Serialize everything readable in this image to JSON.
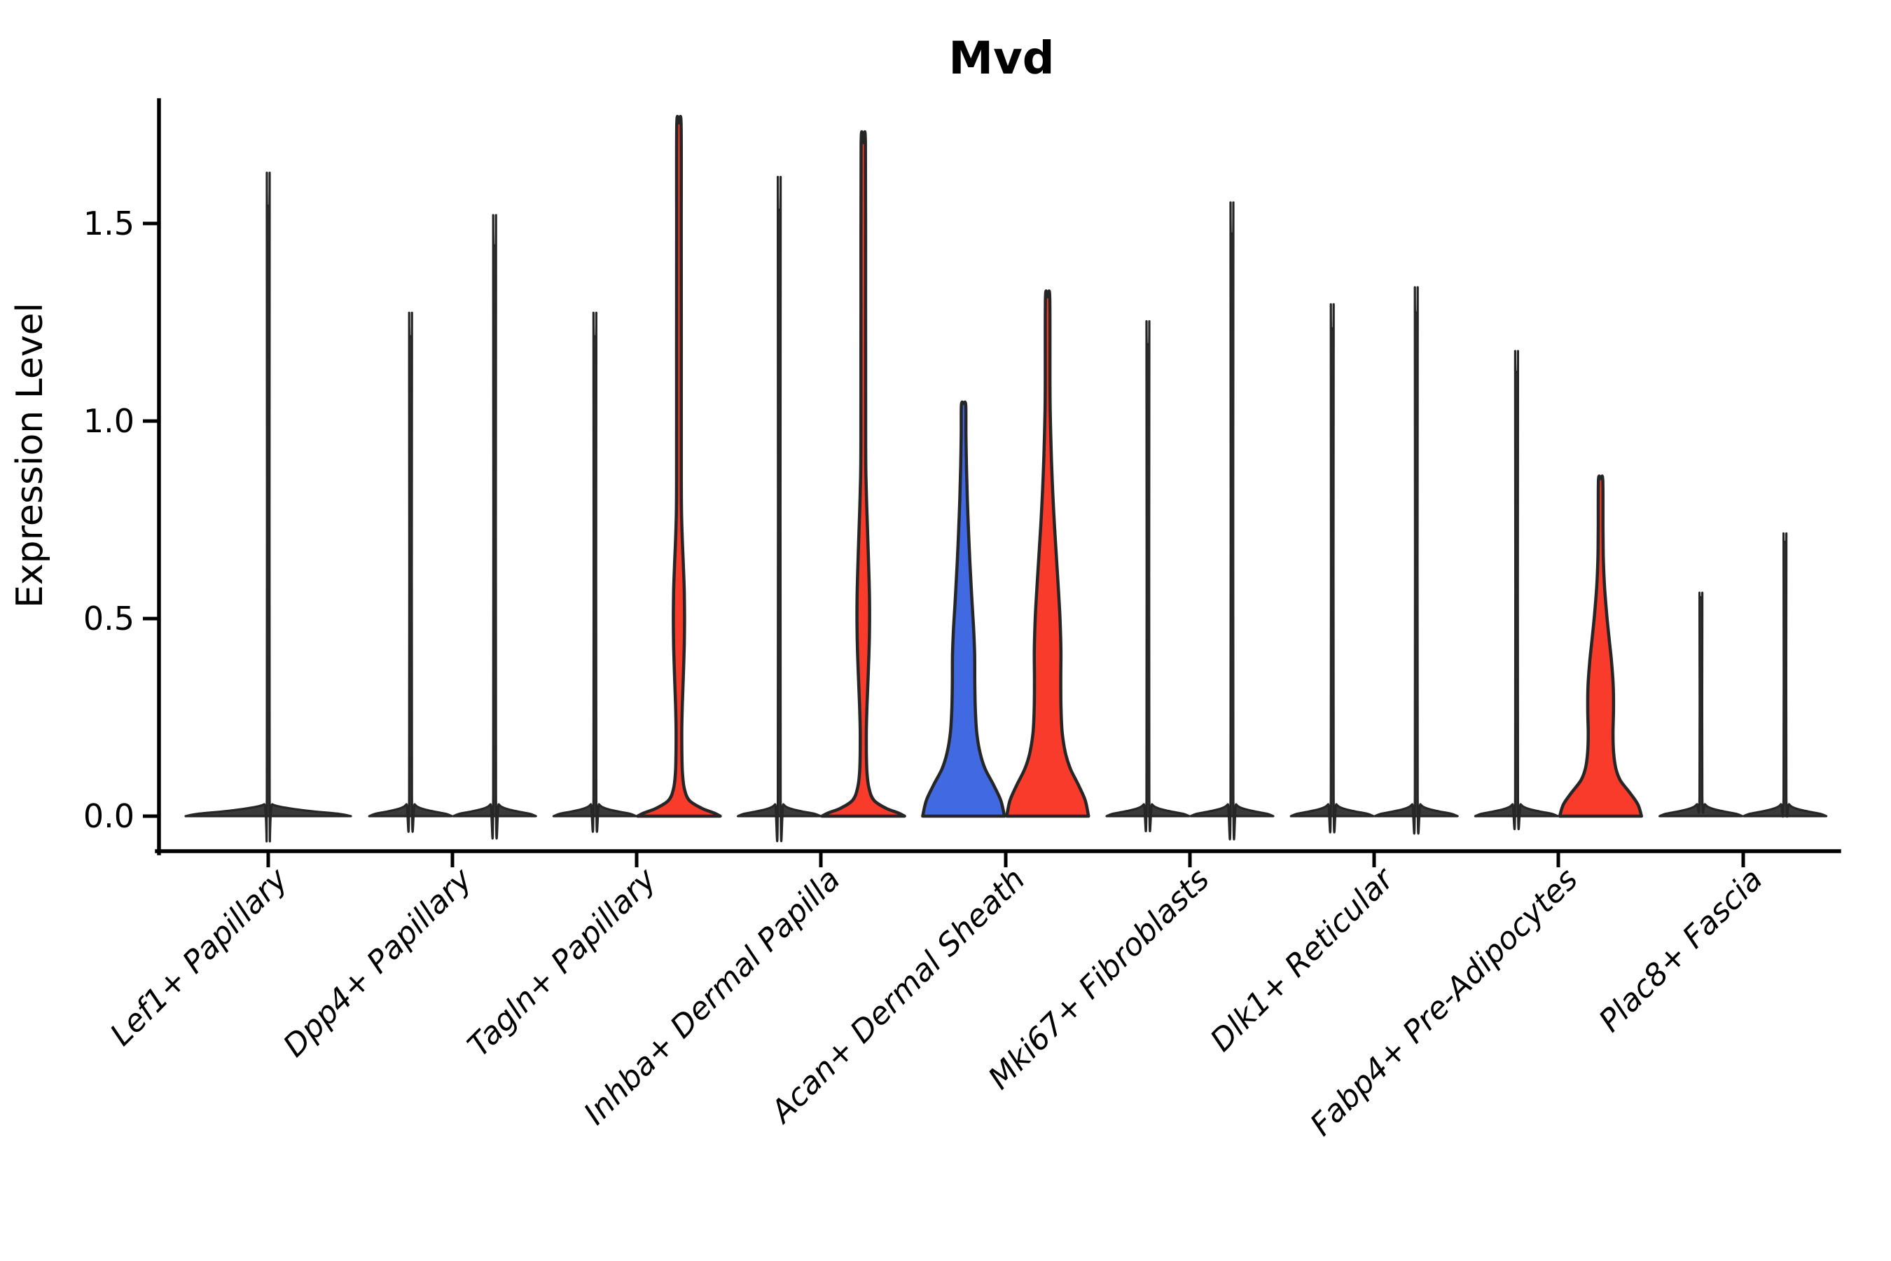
{
  "title": "Mvd",
  "axes": {
    "y_label": "Expression Level",
    "y_ticks": [
      "0.0",
      "0.5",
      "1.0",
      "1.5"
    ],
    "x_labels": [
      "Lef1+ Papillary",
      "Dpp4+ Papillary",
      "Tagln+ Papillary",
      "Inhba+ Dermal Papilla",
      "Acan+ Dermal Sheath",
      "Mki67+ Fibroblasts",
      "Dlk1+ Reticular",
      "Fabp4+ Pre-Adipocytes",
      "Plac8+ Fascia"
    ]
  },
  "chart_data": {
    "type": "violin",
    "title": "Mvd",
    "xlabel": "",
    "ylabel": "Expression Level",
    "ylim": [
      0,
      1.81
    ],
    "y_tick_values": [
      0.0,
      0.5,
      1.0,
      1.5
    ],
    "grid": false,
    "legend": false,
    "categories": [
      "Lef1+ Papillary",
      "Dpp4+ Papillary",
      "Tagln+ Papillary",
      "Inhba+ Dermal Papilla",
      "Acan+ Dermal Sheath",
      "Mki67+ Fibroblasts",
      "Dlk1+ Reticular",
      "Fabp4+ Pre-Adipocytes",
      "Plac8+ Fascia"
    ],
    "colors": {
      "black": "#3a3a3a",
      "red": "#f93b2b",
      "blue": "#4169e1",
      "outline": "#262626"
    },
    "violins": [
      {
        "category": "Lef1+ Papillary",
        "side": "full",
        "color": "black",
        "max_expression": 1.54,
        "profile": [
          [
            0,
            1.0
          ],
          [
            0.006,
            0.85
          ],
          [
            0.012,
            0.55
          ],
          [
            0.02,
            0.25
          ],
          [
            0.03,
            0.05
          ],
          [
            0.05,
            0.017
          ],
          [
            1.51,
            0.017
          ],
          [
            1.54,
            0.015
          ]
        ]
      },
      {
        "category": "Dpp4+ Papillary",
        "side": "left",
        "color": "black",
        "max_expression": 1.21,
        "profile": [
          [
            0,
            1.0
          ],
          [
            0.006,
            0.85
          ],
          [
            0.012,
            0.55
          ],
          [
            0.02,
            0.25
          ],
          [
            0.03,
            0.1
          ],
          [
            0.05,
            0.034
          ],
          [
            1.18,
            0.034
          ],
          [
            1.21,
            0.03
          ]
        ]
      },
      {
        "category": "Dpp4+ Papillary",
        "side": "right",
        "color": "black",
        "max_expression": 1.44,
        "profile": [
          [
            0,
            1.0
          ],
          [
            0.006,
            0.85
          ],
          [
            0.012,
            0.55
          ],
          [
            0.02,
            0.25
          ],
          [
            0.03,
            0.1
          ],
          [
            0.05,
            0.034
          ],
          [
            1.41,
            0.034
          ],
          [
            1.44,
            0.03
          ]
        ]
      },
      {
        "category": "Tagln+ Papillary",
        "side": "left",
        "color": "black",
        "max_expression": 1.21,
        "profile": [
          [
            0,
            1.0
          ],
          [
            0.006,
            0.85
          ],
          [
            0.012,
            0.55
          ],
          [
            0.02,
            0.25
          ],
          [
            0.03,
            0.1
          ],
          [
            0.05,
            0.034
          ],
          [
            1.18,
            0.034
          ],
          [
            1.21,
            0.03
          ]
        ]
      },
      {
        "category": "Tagln+ Papillary",
        "side": "right",
        "color": "red",
        "max_expression": 1.75,
        "profile": [
          [
            0,
            1.0
          ],
          [
            0.008,
            0.85
          ],
          [
            0.02,
            0.55
          ],
          [
            0.04,
            0.25
          ],
          [
            0.07,
            0.13
          ],
          [
            0.11,
            0.085
          ],
          [
            0.16,
            0.072
          ],
          [
            0.22,
            0.07
          ],
          [
            0.28,
            0.082
          ],
          [
            0.35,
            0.105
          ],
          [
            0.43,
            0.128
          ],
          [
            0.5,
            0.135
          ],
          [
            0.57,
            0.128
          ],
          [
            0.64,
            0.105
          ],
          [
            0.7,
            0.082
          ],
          [
            0.76,
            0.065
          ],
          [
            0.85,
            0.058
          ],
          [
            1.2,
            0.057
          ],
          [
            1.5,
            0.056
          ],
          [
            1.75,
            0.052
          ]
        ]
      },
      {
        "category": "Inhba+ Dermal Papilla",
        "side": "left",
        "color": "black",
        "max_expression": 1.53,
        "profile": [
          [
            0,
            1.0
          ],
          [
            0.006,
            0.85
          ],
          [
            0.012,
            0.55
          ],
          [
            0.02,
            0.25
          ],
          [
            0.03,
            0.1
          ],
          [
            0.05,
            0.034
          ],
          [
            1.5,
            0.034
          ],
          [
            1.53,
            0.03
          ]
        ]
      },
      {
        "category": "Inhba+ Dermal Papilla",
        "side": "right",
        "color": "red",
        "max_expression": 1.7,
        "profile": [
          [
            0,
            1.0
          ],
          [
            0.008,
            0.85
          ],
          [
            0.02,
            0.55
          ],
          [
            0.04,
            0.26
          ],
          [
            0.07,
            0.14
          ],
          [
            0.11,
            0.09
          ],
          [
            0.16,
            0.075
          ],
          [
            0.22,
            0.075
          ],
          [
            0.28,
            0.09
          ],
          [
            0.36,
            0.12
          ],
          [
            0.45,
            0.148
          ],
          [
            0.53,
            0.152
          ],
          [
            0.61,
            0.138
          ],
          [
            0.7,
            0.11
          ],
          [
            0.78,
            0.085
          ],
          [
            0.86,
            0.065
          ],
          [
            0.95,
            0.058
          ],
          [
            1.3,
            0.056
          ],
          [
            1.7,
            0.052
          ]
        ]
      },
      {
        "category": "Acan+ Dermal Sheath",
        "side": "left",
        "color": "blue",
        "max_expression": 1.04,
        "profile": [
          [
            0,
            0.99
          ],
          [
            0.04,
            0.9
          ],
          [
            0.08,
            0.72
          ],
          [
            0.12,
            0.52
          ],
          [
            0.16,
            0.4
          ],
          [
            0.21,
            0.32
          ],
          [
            0.27,
            0.285
          ],
          [
            0.34,
            0.272
          ],
          [
            0.41,
            0.268
          ],
          [
            0.48,
            0.24
          ],
          [
            0.56,
            0.195
          ],
          [
            0.64,
            0.155
          ],
          [
            0.72,
            0.12
          ],
          [
            0.8,
            0.092
          ],
          [
            0.88,
            0.072
          ],
          [
            0.96,
            0.058
          ],
          [
            1.04,
            0.052
          ]
        ]
      },
      {
        "category": "Acan+ Dermal Sheath",
        "side": "right",
        "color": "red",
        "max_expression": 1.31,
        "profile": [
          [
            0,
            0.99
          ],
          [
            0.04,
            0.91
          ],
          [
            0.08,
            0.74
          ],
          [
            0.12,
            0.55
          ],
          [
            0.16,
            0.43
          ],
          [
            0.21,
            0.355
          ],
          [
            0.27,
            0.325
          ],
          [
            0.34,
            0.318
          ],
          [
            0.42,
            0.322
          ],
          [
            0.5,
            0.3
          ],
          [
            0.58,
            0.258
          ],
          [
            0.66,
            0.21
          ],
          [
            0.74,
            0.163
          ],
          [
            0.82,
            0.124
          ],
          [
            0.9,
            0.094
          ],
          [
            0.99,
            0.07
          ],
          [
            1.08,
            0.057
          ],
          [
            1.31,
            0.052
          ]
        ]
      },
      {
        "category": "Mki67+ Fibroblasts",
        "side": "left",
        "color": "black",
        "max_expression": 1.19,
        "profile": [
          [
            0,
            1.0
          ],
          [
            0.006,
            0.85
          ],
          [
            0.012,
            0.55
          ],
          [
            0.02,
            0.25
          ],
          [
            0.03,
            0.1
          ],
          [
            0.05,
            0.034
          ],
          [
            1.16,
            0.034
          ],
          [
            1.19,
            0.03
          ]
        ]
      },
      {
        "category": "Mki67+ Fibroblasts",
        "side": "right",
        "color": "black",
        "max_expression": 1.47,
        "profile": [
          [
            0,
            1.0
          ],
          [
            0.006,
            0.85
          ],
          [
            0.012,
            0.55
          ],
          [
            0.02,
            0.25
          ],
          [
            0.03,
            0.1
          ],
          [
            0.05,
            0.034
          ],
          [
            1.44,
            0.034
          ],
          [
            1.47,
            0.03
          ]
        ]
      },
      {
        "category": "Dlk1+ Reticular",
        "side": "left",
        "color": "black",
        "max_expression": 1.23,
        "profile": [
          [
            0,
            1.0
          ],
          [
            0.006,
            0.85
          ],
          [
            0.012,
            0.55
          ],
          [
            0.02,
            0.25
          ],
          [
            0.03,
            0.1
          ],
          [
            0.05,
            0.034
          ],
          [
            1.2,
            0.034
          ],
          [
            1.23,
            0.03
          ]
        ]
      },
      {
        "category": "Dlk1+ Reticular",
        "side": "right",
        "color": "black",
        "max_expression": 1.27,
        "profile": [
          [
            0,
            1.0
          ],
          [
            0.006,
            0.85
          ],
          [
            0.012,
            0.55
          ],
          [
            0.02,
            0.25
          ],
          [
            0.03,
            0.1
          ],
          [
            0.05,
            0.034
          ],
          [
            1.24,
            0.034
          ],
          [
            1.27,
            0.03
          ]
        ]
      },
      {
        "category": "Fabp4+ Pre-Adipocytes",
        "side": "left",
        "color": "black",
        "max_expression": 1.12,
        "profile": [
          [
            0,
            1.0
          ],
          [
            0.006,
            0.85
          ],
          [
            0.012,
            0.55
          ],
          [
            0.02,
            0.25
          ],
          [
            0.03,
            0.1
          ],
          [
            0.05,
            0.034
          ],
          [
            1.09,
            0.034
          ],
          [
            1.12,
            0.03
          ]
        ]
      },
      {
        "category": "Fabp4+ Pre-Adipocytes",
        "side": "right",
        "color": "red",
        "max_expression": 0.85,
        "profile": [
          [
            0,
            0.99
          ],
          [
            0.03,
            0.9
          ],
          [
            0.06,
            0.7
          ],
          [
            0.09,
            0.48
          ],
          [
            0.12,
            0.37
          ],
          [
            0.16,
            0.315
          ],
          [
            0.21,
            0.3
          ],
          [
            0.27,
            0.312
          ],
          [
            0.33,
            0.305
          ],
          [
            0.39,
            0.265
          ],
          [
            0.45,
            0.205
          ],
          [
            0.51,
            0.148
          ],
          [
            0.58,
            0.095
          ],
          [
            0.65,
            0.066
          ],
          [
            0.73,
            0.058
          ],
          [
            0.85,
            0.052
          ]
        ]
      },
      {
        "category": "Plac8+ Fascia",
        "side": "left",
        "color": "black",
        "max_expression": 0.55,
        "profile": [
          [
            0,
            1.0
          ],
          [
            0.006,
            0.85
          ],
          [
            0.012,
            0.55
          ],
          [
            0.02,
            0.25
          ],
          [
            0.03,
            0.1
          ],
          [
            0.05,
            0.034
          ],
          [
            0.52,
            0.034
          ],
          [
            0.55,
            0.03
          ]
        ]
      },
      {
        "category": "Plac8+ Fascia",
        "side": "right",
        "color": "black",
        "max_expression": 0.69,
        "profile": [
          [
            0,
            1.0
          ],
          [
            0.006,
            0.85
          ],
          [
            0.012,
            0.55
          ],
          [
            0.02,
            0.25
          ],
          [
            0.03,
            0.1
          ],
          [
            0.05,
            0.034
          ],
          [
            0.66,
            0.034
          ],
          [
            0.69,
            0.03
          ]
        ]
      }
    ]
  }
}
